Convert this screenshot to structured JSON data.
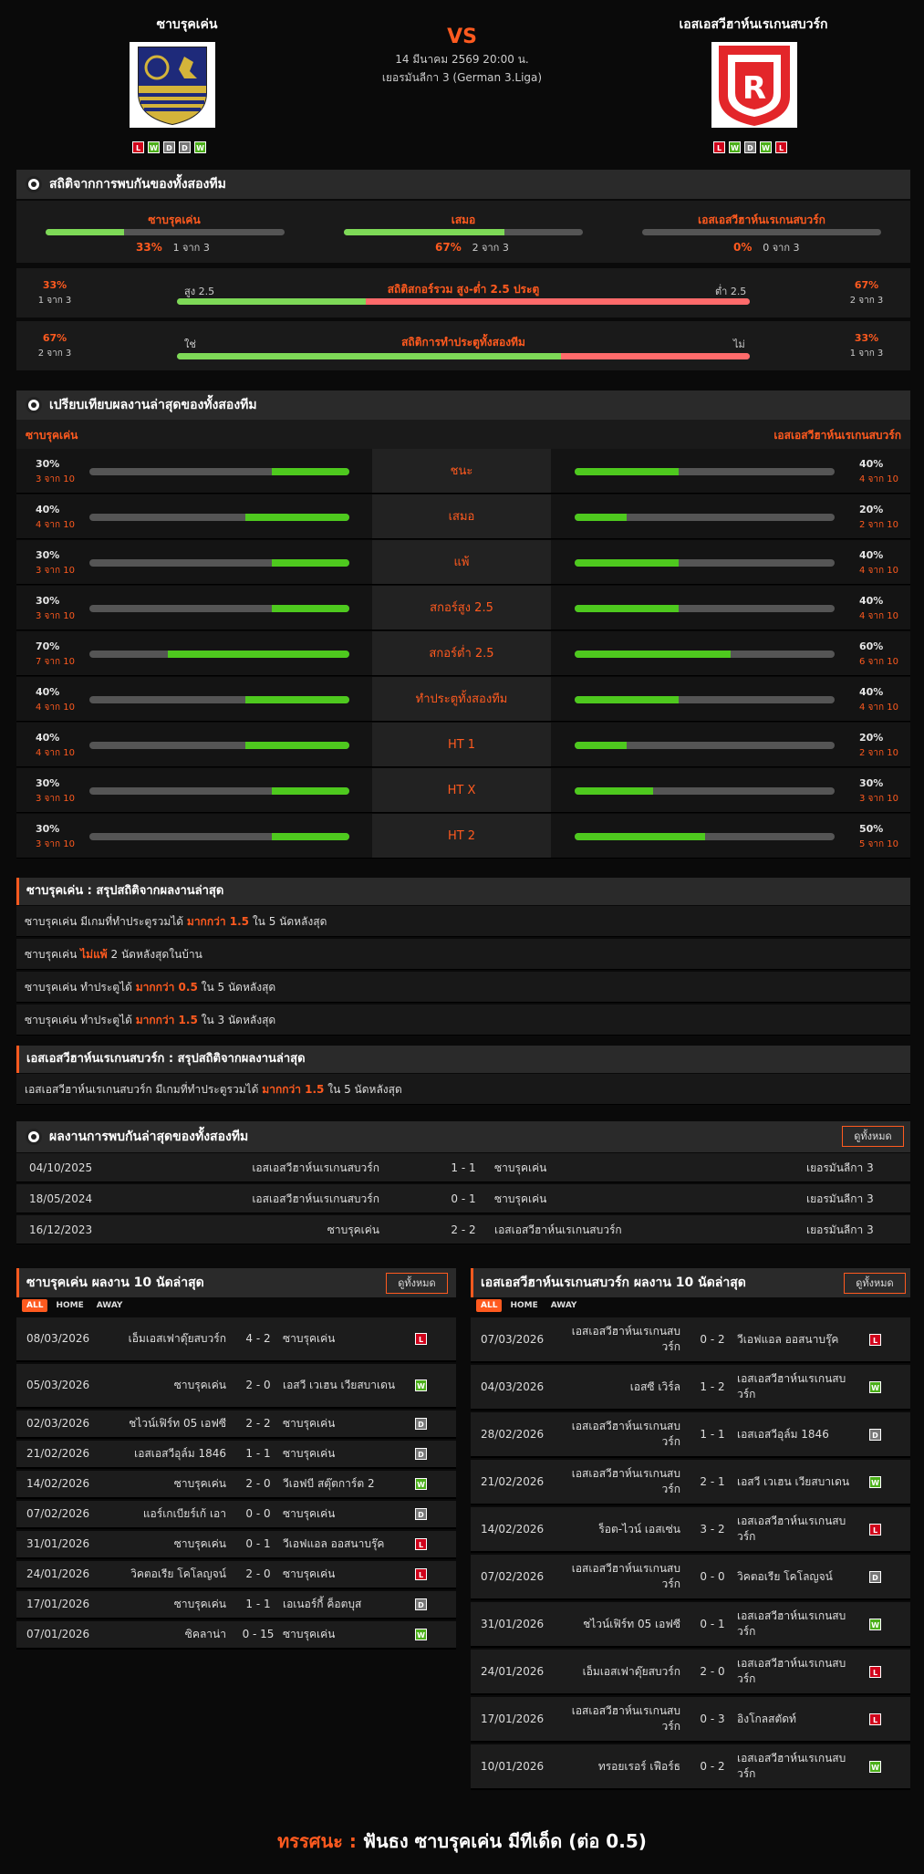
{
  "match": {
    "home": "ซาบรุคเค่น",
    "away": "เอสเอสวีฮาห์นเรเกนสบวร์ก",
    "vs": "VS",
    "datetime": "14 มีนาคม 2569 20:00 น.",
    "league": "เยอรมันลีกา 3 (German 3.Liga)",
    "home_form": [
      "L",
      "W",
      "D",
      "D",
      "W"
    ],
    "away_form": [
      "L",
      "W",
      "D",
      "W",
      "L"
    ]
  },
  "h2h_stats": {
    "title": "สถิติจากการพบกันของทั้งสองทีม",
    "home": {
      "label": "ซาบรุคเค่น",
      "pct": "33%",
      "of": "1 จาก 3",
      "value": 0.33
    },
    "draw": {
      "label": "เสมอ",
      "pct": "67%",
      "of": "2 จาก 3",
      "value": 0.67
    },
    "away": {
      "label": "เอสเอสวีฮาห์นเรเกนสบวร์ก",
      "pct": "0%",
      "of": "0 จาก 3",
      "value": 0
    },
    "ou": {
      "title": "สถิติสกอร์รวม สูง-ต่ำ 2.5 ประตู",
      "left_label": "สูง 2.5",
      "right_label": "ต่ำ 2.5",
      "left_pct": "33%",
      "left_of": "1 จาก 3",
      "right_pct": "67%",
      "right_of": "2 จาก 3",
      "value": 0.33
    },
    "btts": {
      "title": "สถิติการทำประตูทั้งสองทีม",
      "left_label": "ใช่",
      "right_label": "ไม่",
      "left_pct": "67%",
      "left_of": "2 จาก 3",
      "right_pct": "33%",
      "right_of": "1 จาก 3",
      "value": 0.67
    }
  },
  "compare": {
    "title": "เปรียบเทียบผลงานล่าสุดของทั้งสองทีม",
    "home_label": "ซาบรุคเค่น",
    "away_label": "เอสเอสวีฮาห์นเรเกนสบวร์ก",
    "rows": [
      {
        "label": "ชนะ",
        "hp": "30%",
        "hof": "3 จาก 10",
        "hv": 0.3,
        "ap": "40%",
        "aof": "4 จาก 10",
        "av": 0.4
      },
      {
        "label": "เสมอ",
        "hp": "40%",
        "hof": "4 จาก 10",
        "hv": 0.4,
        "ap": "20%",
        "aof": "2 จาก 10",
        "av": 0.2
      },
      {
        "label": "แพ้",
        "hp": "30%",
        "hof": "3 จาก 10",
        "hv": 0.3,
        "ap": "40%",
        "aof": "4 จาก 10",
        "av": 0.4
      },
      {
        "label": "สกอร์สูง 2.5",
        "hp": "30%",
        "hof": "3 จาก 10",
        "hv": 0.3,
        "ap": "40%",
        "aof": "4 จาก 10",
        "av": 0.4
      },
      {
        "label": "สกอร์ต่ำ 2.5",
        "hp": "70%",
        "hof": "7 จาก 10",
        "hv": 0.7,
        "ap": "60%",
        "aof": "6 จาก 10",
        "av": 0.6
      },
      {
        "label": "ทำประตูทั้งสองทีม",
        "hp": "40%",
        "hof": "4 จาก 10",
        "hv": 0.4,
        "ap": "40%",
        "aof": "4 จาก 10",
        "av": 0.4
      },
      {
        "label": "HT 1",
        "hp": "40%",
        "hof": "4 จาก 10",
        "hv": 0.4,
        "ap": "20%",
        "aof": "2 จาก 10",
        "av": 0.2
      },
      {
        "label": "HT X",
        "hp": "30%",
        "hof": "3 จาก 10",
        "hv": 0.3,
        "ap": "30%",
        "aof": "3 จาก 10",
        "av": 0.3
      },
      {
        "label": "HT 2",
        "hp": "30%",
        "hof": "3 จาก 10",
        "hv": 0.3,
        "ap": "50%",
        "aof": "5 จาก 10",
        "av": 0.5
      }
    ]
  },
  "home_summary": {
    "title": "ซาบรุคเค่น : สรุปสถิติจากผลงานล่าสุด",
    "rows": [
      [
        "ซาบรุคเค่น  มีเกมที่ทำประตูรวมได้ ",
        "มากกว่า  1.5",
        " ใน 5 นัดหลังสุด"
      ],
      [
        "ซาบรุคเค่น ",
        "ไม่แพ้",
        " 2  นัดหลังสุดในบ้าน"
      ],
      [
        "ซาบรุคเค่น  ทำประตูได้ ",
        "มากกว่า  0.5",
        " ใน 5 นัดหลังสุด"
      ],
      [
        "ซาบรุคเค่น  ทำประตูได้ ",
        "มากกว่า  1.5",
        " ใน 3 นัดหลังสุด"
      ]
    ]
  },
  "away_summary": {
    "title": "เอสเอสวีฮาห์นเรเกนสบวร์ก : สรุปสถิติจากผลงานล่าสุด",
    "rows": [
      [
        "เอสเอสวีฮาห์นเรเกนสบวร์ก  มีเกมที่ทำประตูรวมได้ ",
        "มากกว่า  1.5",
        " ใน 5 นัดหลังสุด"
      ]
    ]
  },
  "h2h_results": {
    "title": "ผลงานการพบกันล่าสุดของทั้งสองทีม",
    "view_all": "ดูทั้งหมด",
    "rows": [
      {
        "date": "04/10/2025",
        "home": "เอสเอสวีฮาห์นเรเกนสบวร์ก",
        "score": "1 - 1",
        "away": "ซาบรุคเค่น",
        "league": "เยอรมันลีกา 3"
      },
      {
        "date": "18/05/2024",
        "home": "เอสเอสวีฮาห์นเรเกนสบวร์ก",
        "score": "0 - 1",
        "away": "ซาบรุคเค่น",
        "league": "เยอรมันลีกา 3"
      },
      {
        "date": "16/12/2023",
        "home": "ซาบรุคเค่น",
        "score": "2 - 2",
        "away": "เอสเอสวีฮาห์นเรเกนสบวร์ก",
        "league": "เยอรมันลีกา 3"
      }
    ]
  },
  "home_last10": {
    "title": "ซาบรุคเค่น ผลงาน 10 นัดล่าสุด",
    "view_all": "ดูทั้งหมด",
    "tabs": [
      "ALL",
      "HOME",
      "AWAY"
    ],
    "rows": [
      {
        "date": "08/03/2026",
        "home": "เอ็มเอสเฟาดุ๊ยสบวร์ก",
        "score": "4 - 2",
        "away": "ซาบรุคเค่น",
        "r": "L"
      },
      {
        "date": "05/03/2026",
        "home": "ซาบรุคเค่น",
        "score": "2 - 0",
        "away": "เอสวี เวเฮน เวียสบาเดน",
        "r": "W"
      },
      {
        "date": "02/03/2026",
        "home": "ชไวน์เฟิร์ท 05 เอฟซี",
        "score": "2 - 2",
        "away": "ซาบรุคเค่น",
        "r": "D"
      },
      {
        "date": "21/02/2026",
        "home": "เอสเอสวีอุล์ม 1846",
        "score": "1 - 1",
        "away": "ซาบรุคเค่น",
        "r": "D"
      },
      {
        "date": "14/02/2026",
        "home": "ซาบรุคเค่น",
        "score": "2 - 0",
        "away": "วีเอฟบี สตุ๊ตการ์ต 2",
        "r": "W"
      },
      {
        "date": "07/02/2026",
        "home": "แอร์เกเบียร์เก้ เอา",
        "score": "0 - 0",
        "away": "ซาบรุคเค่น",
        "r": "D"
      },
      {
        "date": "31/01/2026",
        "home": "ซาบรุคเค่น",
        "score": "0 - 1",
        "away": "วีเอฟแอล ออสนาบรุ๊ค",
        "r": "L"
      },
      {
        "date": "24/01/2026",
        "home": "วิคตอเรีย โคโลญจน์",
        "score": "2 - 0",
        "away": "ซาบรุคเค่น",
        "r": "L"
      },
      {
        "date": "17/01/2026",
        "home": "ซาบรุคเค่น",
        "score": "1 - 1",
        "away": "เอเนอร์กี้ ค็อตบุส",
        "r": "D"
      },
      {
        "date": "07/01/2026",
        "home": "ซิคลาน่า",
        "score": "0 - 15",
        "away": "ซาบรุคเค่น",
        "r": "W"
      }
    ]
  },
  "away_last10": {
    "title": "เอสเอสวีฮาห์นเรเกนสบวร์ก ผลงาน 10 นัดล่าสุด",
    "view_all": "ดูทั้งหมด",
    "tabs": [
      "ALL",
      "HOME",
      "AWAY"
    ],
    "rows": [
      {
        "date": "07/03/2026",
        "home": "เอสเอสวีฮาห์นเรเกนสบวร์ก",
        "score": "0 - 2",
        "away": "วีเอฟแอล ออสนาบรุ๊ค",
        "r": "L"
      },
      {
        "date": "04/03/2026",
        "home": "เอสซี เวิร์ล",
        "score": "1 - 2",
        "away": "เอสเอสวีฮาห์นเรเกนสบวร์ก",
        "r": "W"
      },
      {
        "date": "28/02/2026",
        "home": "เอสเอสวีฮาห์นเรเกนสบวร์ก",
        "score": "1 - 1",
        "away": "เอสเอสวีอุล์ม 1846",
        "r": "D"
      },
      {
        "date": "21/02/2026",
        "home": "เอสเอสวีฮาห์นเรเกนสบวร์ก",
        "score": "2 - 1",
        "away": "เอสวี เวเฮน เวียสบาเดน",
        "r": "W"
      },
      {
        "date": "14/02/2026",
        "home": "ร็อต-ไวน์ เอสเซ่น",
        "score": "3 - 2",
        "away": "เอสเอสวีฮาห์นเรเกนสบวร์ก",
        "r": "L"
      },
      {
        "date": "07/02/2026",
        "home": "เอสเอสวีฮาห์นเรเกนสบวร์ก",
        "score": "0 - 0",
        "away": "วิคตอเรีย โคโลญจน์",
        "r": "D"
      },
      {
        "date": "31/01/2026",
        "home": "ชไวน์เฟิร์ท 05 เอฟซี",
        "score": "0 - 1",
        "away": "เอสเอสวีฮาห์นเรเกนสบวร์ก",
        "r": "W"
      },
      {
        "date": "24/01/2026",
        "home": "เอ็มเอสเฟาดุ๊ยสบวร์ก",
        "score": "2 - 0",
        "away": "เอสเอสวีฮาห์นเรเกนสบวร์ก",
        "r": "L"
      },
      {
        "date": "17/01/2026",
        "home": "เอสเอสวีฮาห์นเรเกนสบวร์ก",
        "score": "0 - 3",
        "away": "อิงโกลสตัดท์",
        "r": "L"
      },
      {
        "date": "10/01/2026",
        "home": "ทรอยเรอร์ เฟือร์ธ",
        "score": "0 - 2",
        "away": "เอสเอสวีฮาห์นเรเกนสบวร์ก",
        "r": "W"
      }
    ]
  },
  "verdict": {
    "label": "ทรรศนะ :",
    "text": " ฟันธง ซาบรุคเค่น มีทีเด็ด (ต่อ 0.5)"
  },
  "colors": {
    "accent": "#ff5a1f",
    "win": "#4caf1a",
    "loss": "#d0021b",
    "draw": "#777777",
    "bar_green": "#7ed957",
    "bar_red": "#ff6b6b"
  }
}
